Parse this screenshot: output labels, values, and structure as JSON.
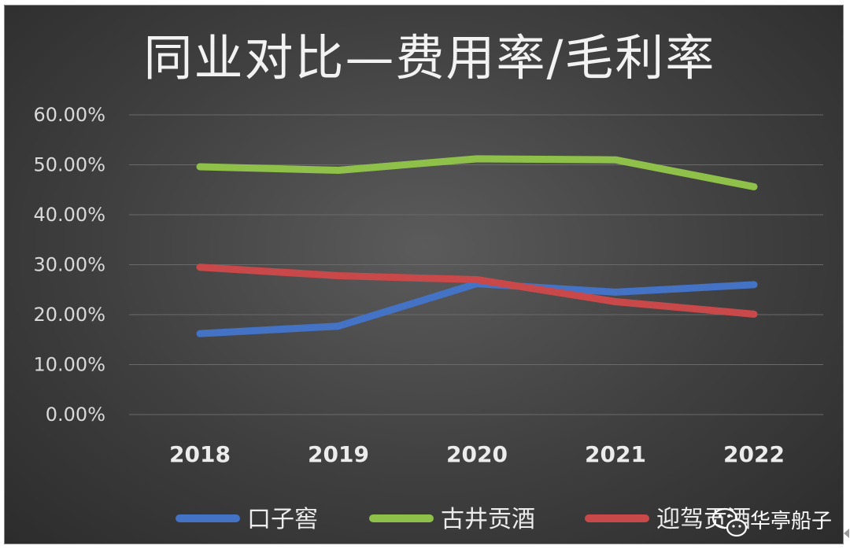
{
  "chart_data": {
    "type": "line",
    "title": "同业对比—费用率/毛利率",
    "categories": [
      "2018",
      "2019",
      "2020",
      "2021",
      "2022"
    ],
    "y_ticks": [
      "0.00%",
      "10.00%",
      "20.00%",
      "30.00%",
      "40.00%",
      "50.00%",
      "60.00%"
    ],
    "ylim": [
      0,
      60
    ],
    "grid": true,
    "legend_position": "bottom",
    "series": [
      {
        "name": "口子窖",
        "color": "#4472c4",
        "values": [
          16.2,
          17.7,
          26.2,
          24.5,
          26.0
        ]
      },
      {
        "name": "古井贡酒",
        "color": "#8fc14a",
        "values": [
          49.6,
          48.9,
          51.2,
          51.0,
          45.6
        ]
      },
      {
        "name": "迎驾贡酒",
        "color": "#c9484a",
        "values": [
          29.5,
          27.8,
          27.0,
          22.6,
          20.1
        ]
      }
    ]
  },
  "watermark": {
    "text": "华亭船子",
    "icon": "wechat-icon"
  }
}
